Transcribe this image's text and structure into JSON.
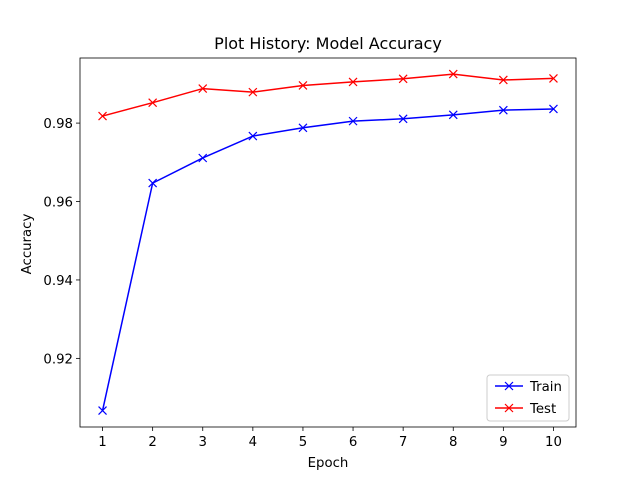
{
  "chart_data": {
    "type": "line",
    "title": "Plot History: Model Accuracy",
    "xlabel": "Epoch",
    "ylabel": "Accuracy",
    "x": [
      1,
      2,
      3,
      4,
      5,
      6,
      7,
      8,
      9,
      10
    ],
    "x_ticks": [
      "1",
      "2",
      "3",
      "4",
      "5",
      "6",
      "7",
      "8",
      "9",
      "10"
    ],
    "y_ticks": [
      "0.92",
      "0.94",
      "0.96",
      "0.98"
    ],
    "xlim": [
      0.55,
      10.45
    ],
    "ylim": [
      0.9025,
      0.9966
    ],
    "grid": false,
    "legend_position": "lower right",
    "marker": "x",
    "series": [
      {
        "name": "Train",
        "color": "#0000ff",
        "values": [
          0.9067,
          0.9647,
          0.9711,
          0.9767,
          0.9788,
          0.9805,
          0.9811,
          0.9821,
          0.9833,
          0.9836
        ]
      },
      {
        "name": "Test",
        "color": "#ff0000",
        "values": [
          0.9818,
          0.9852,
          0.9888,
          0.9879,
          0.9896,
          0.9905,
          0.9913,
          0.9925,
          0.991,
          0.9914
        ]
      }
    ]
  }
}
